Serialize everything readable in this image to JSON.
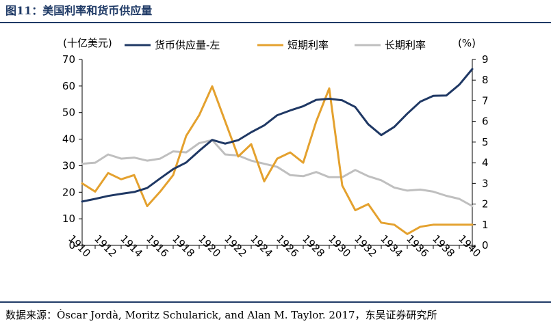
{
  "figure": {
    "title": "图11：美国利率和货币供应量",
    "source": "数据来源：Òscar Jordà, Moritz Schularick, and Alan M. Taylor. 2017，东吴证券研究所"
  },
  "chart_data": {
    "type": "line",
    "title": "",
    "left_unit": "(十亿美元)",
    "right_unit": "(%)",
    "x": [
      1910,
      1911,
      1912,
      1913,
      1914,
      1915,
      1916,
      1917,
      1918,
      1919,
      1920,
      1921,
      1922,
      1923,
      1924,
      1925,
      1926,
      1927,
      1928,
      1929,
      1930,
      1931,
      1932,
      1933,
      1934,
      1935,
      1936,
      1937,
      1938,
      1939,
      1940
    ],
    "x_tick_labels": [
      "1910",
      "1912",
      "1914",
      "1916",
      "1918",
      "1920",
      "1922",
      "1924",
      "1926",
      "1928",
      "1930",
      "1932",
      "1934",
      "1936",
      "1938",
      "1940"
    ],
    "ylim_left": [
      0,
      70
    ],
    "yticks_left": [
      "0",
      "10",
      "20",
      "30",
      "40",
      "50",
      "60",
      "70"
    ],
    "ylim_right": [
      0,
      9
    ],
    "yticks_right": [
      "0",
      "1",
      "2",
      "3",
      "4",
      "5",
      "6",
      "7",
      "8",
      "9"
    ],
    "grid": false,
    "legend_position": "top",
    "series": [
      {
        "name": "货币供应量-左",
        "axis": "left",
        "color": "#1f3864",
        "values": [
          16.5,
          17.5,
          18.6,
          19.4,
          20.1,
          21.6,
          25.2,
          28.7,
          31.2,
          35.6,
          39.7,
          38.3,
          39.6,
          42.6,
          45.2,
          49.0,
          50.8,
          52.4,
          54.8,
          55.2,
          54.6,
          52.1,
          45.6,
          41.5,
          44.6,
          49.6,
          54.1,
          56.3,
          56.4,
          60.5,
          66.4
        ]
      },
      {
        "name": "短期利率",
        "axis": "right",
        "color": "#e4a12e",
        "values": [
          3.0,
          2.6,
          3.5,
          3.2,
          3.4,
          1.9,
          2.6,
          3.4,
          5.3,
          6.3,
          7.7,
          6.0,
          4.3,
          4.9,
          3.1,
          4.2,
          4.5,
          4.0,
          6.0,
          7.6,
          2.9,
          1.7,
          2.0,
          1.1,
          1.0,
          0.55,
          0.9,
          1.0,
          1.0,
          1.0,
          1.0
        ]
      },
      {
        "name": "长期利率",
        "axis": "right",
        "color": "#bfbfbf",
        "values": [
          3.95,
          4.0,
          4.4,
          4.2,
          4.25,
          4.1,
          4.2,
          4.55,
          4.5,
          4.95,
          5.1,
          4.4,
          4.35,
          4.1,
          3.95,
          3.8,
          3.4,
          3.35,
          3.55,
          3.3,
          3.3,
          3.65,
          3.35,
          3.15,
          2.8,
          2.65,
          2.7,
          2.6,
          2.4,
          2.25,
          1.9
        ]
      }
    ]
  }
}
